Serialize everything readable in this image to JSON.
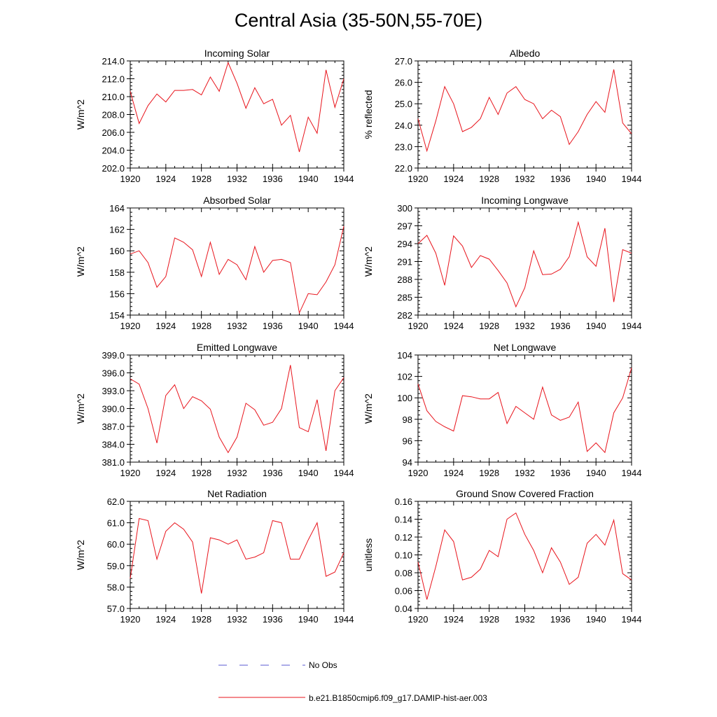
{
  "figure": {
    "title": "Central Asia (35-50N,55-70E)",
    "line_color": "#e8141c",
    "obs_color": "#5a5ad0"
  },
  "legend": {
    "obs_label": "No Obs",
    "model_label": "b.e21.B1850cmip6.f09_g17.DAMIP-hist-aer.003"
  },
  "chart_data": [
    {
      "type": "line",
      "title": "Incoming Solar",
      "ylabel": "W/m^2",
      "x": [
        1920,
        1921,
        1922,
        1923,
        1924,
        1925,
        1926,
        1927,
        1928,
        1929,
        1930,
        1931,
        1932,
        1933,
        1934,
        1935,
        1936,
        1937,
        1938,
        1939,
        1940,
        1941,
        1942,
        1943,
        1944
      ],
      "values": [
        210.6,
        207.0,
        209.0,
        210.3,
        209.4,
        210.7,
        210.7,
        210.8,
        210.2,
        212.2,
        210.6,
        213.8,
        211.5,
        208.7,
        211.0,
        209.2,
        209.7,
        206.8,
        207.9,
        203.8,
        207.7,
        205.9,
        213.0,
        208.8,
        212.0
      ],
      "xlim": [
        1920,
        1944
      ],
      "ylim": [
        202,
        214
      ],
      "yticks": [
        "202.0",
        "204.0",
        "206.0",
        "208.0",
        "210.0",
        "212.0",
        "214.0"
      ],
      "xticks": [
        "1920",
        "1924",
        "1928",
        "1932",
        "1936",
        "1940",
        "1944"
      ]
    },
    {
      "type": "line",
      "title": "Albedo",
      "ylabel": "% reflected",
      "x": [
        1920,
        1921,
        1922,
        1923,
        1924,
        1925,
        1926,
        1927,
        1928,
        1929,
        1930,
        1931,
        1932,
        1933,
        1934,
        1935,
        1936,
        1937,
        1938,
        1939,
        1940,
        1941,
        1942,
        1943,
        1944
      ],
      "values": [
        24.3,
        22.8,
        24.2,
        25.8,
        25.0,
        23.7,
        23.9,
        24.3,
        25.3,
        24.5,
        25.5,
        25.8,
        25.2,
        25.0,
        24.3,
        24.7,
        24.4,
        23.1,
        23.7,
        24.5,
        25.1,
        24.6,
        26.6,
        24.1,
        23.6
      ],
      "xlim": [
        1920,
        1944
      ],
      "ylim": [
        22,
        27
      ],
      "yticks": [
        "22.0",
        "23.0",
        "24.0",
        "25.0",
        "26.0",
        "27.0"
      ],
      "xticks": [
        "1920",
        "1924",
        "1928",
        "1932",
        "1936",
        "1940",
        "1944"
      ]
    },
    {
      "type": "line",
      "title": "Absorbed Solar",
      "ylabel": "W/m^2",
      "x": [
        1920,
        1921,
        1922,
        1923,
        1924,
        1925,
        1926,
        1927,
        1928,
        1929,
        1930,
        1931,
        1932,
        1933,
        1934,
        1935,
        1936,
        1937,
        1938,
        1939,
        1940,
        1941,
        1942,
        1943,
        1944
      ],
      "values": [
        159.7,
        160.0,
        158.9,
        156.6,
        157.6,
        161.2,
        160.8,
        160.1,
        157.6,
        160.8,
        157.8,
        159.2,
        158.7,
        157.3,
        160.4,
        158.0,
        159.1,
        159.2,
        158.9,
        154.2,
        156.0,
        155.9,
        157.1,
        158.7,
        162.3
      ],
      "xlim": [
        1920,
        1944
      ],
      "ylim": [
        154,
        164
      ],
      "yticks": [
        "154",
        "156",
        "158",
        "160",
        "162",
        "164"
      ],
      "xticks": [
        "1920",
        "1924",
        "1928",
        "1932",
        "1936",
        "1940",
        "1944"
      ]
    },
    {
      "type": "line",
      "title": "Incoming Longwave",
      "ylabel": "W/m^2",
      "x": [
        1920,
        1921,
        1922,
        1923,
        1924,
        1925,
        1926,
        1927,
        1928,
        1929,
        1930,
        1931,
        1932,
        1933,
        1934,
        1935,
        1936,
        1937,
        1938,
        1939,
        1940,
        1941,
        1942,
        1943,
        1944
      ],
      "values": [
        294.0,
        295.4,
        292.4,
        287.0,
        295.3,
        293.6,
        290.0,
        292.0,
        291.4,
        289.5,
        287.4,
        283.4,
        286.6,
        292.8,
        288.8,
        288.9,
        289.7,
        291.8,
        297.6,
        291.8,
        290.2,
        296.6,
        284.2,
        293.0,
        292.4
      ],
      "xlim": [
        1920,
        1944
      ],
      "ylim": [
        282,
        300
      ],
      "yticks": [
        "282",
        "285",
        "288",
        "291",
        "294",
        "297",
        "300"
      ],
      "xticks": [
        "1920",
        "1924",
        "1928",
        "1932",
        "1936",
        "1940",
        "1944"
      ]
    },
    {
      "type": "line",
      "title": "Emitted Longwave",
      "ylabel": "W/m^2",
      "x": [
        1920,
        1921,
        1922,
        1923,
        1924,
        1925,
        1926,
        1927,
        1928,
        1929,
        1930,
        1931,
        1932,
        1933,
        1934,
        1935,
        1936,
        1937,
        1938,
        1939,
        1940,
        1941,
        1942,
        1943,
        1944
      ],
      "values": [
        395.0,
        394.1,
        390.0,
        384.2,
        392.2,
        394.0,
        390.0,
        392.0,
        391.3,
        389.9,
        385.2,
        382.6,
        385.2,
        390.9,
        389.8,
        387.2,
        387.7,
        390.0,
        397.3,
        386.8,
        386.1,
        391.5,
        382.9,
        393.0,
        395.2
      ],
      "xlim": [
        1920,
        1944
      ],
      "ylim": [
        381,
        399
      ],
      "yticks": [
        "381.0",
        "384.0",
        "387.0",
        "390.0",
        "393.0",
        "396.0",
        "399.0"
      ],
      "xticks": [
        "1920",
        "1924",
        "1928",
        "1932",
        "1936",
        "1940",
        "1944"
      ]
    },
    {
      "type": "line",
      "title": "Net Longwave",
      "ylabel": "W/m^2",
      "x": [
        1920,
        1921,
        1922,
        1923,
        1924,
        1925,
        1926,
        1927,
        1928,
        1929,
        1930,
        1931,
        1932,
        1933,
        1934,
        1935,
        1936,
        1937,
        1938,
        1939,
        1940,
        1941,
        1942,
        1943,
        1944
      ],
      "values": [
        101.3,
        98.8,
        97.8,
        97.3,
        96.9,
        100.2,
        100.1,
        99.9,
        99.9,
        100.5,
        97.6,
        99.2,
        98.6,
        98.0,
        101.0,
        98.4,
        97.9,
        98.2,
        99.6,
        95.0,
        95.8,
        94.9,
        98.6,
        100.0,
        102.8
      ],
      "xlim": [
        1920,
        1944
      ],
      "ylim": [
        94,
        104
      ],
      "yticks": [
        "94",
        "96",
        "98",
        "100",
        "102",
        "104"
      ],
      "xticks": [
        "1920",
        "1924",
        "1928",
        "1932",
        "1936",
        "1940",
        "1944"
      ]
    },
    {
      "type": "line",
      "title": "Net Radiation",
      "ylabel": "W/m^2",
      "x": [
        1920,
        1921,
        1922,
        1923,
        1924,
        1925,
        1926,
        1927,
        1928,
        1929,
        1930,
        1931,
        1932,
        1933,
        1934,
        1935,
        1936,
        1937,
        1938,
        1939,
        1940,
        1941,
        1942,
        1943,
        1944
      ],
      "values": [
        58.4,
        61.2,
        61.1,
        59.3,
        60.6,
        61.0,
        60.7,
        60.1,
        57.7,
        60.3,
        60.2,
        60.0,
        60.2,
        59.3,
        59.4,
        59.6,
        61.1,
        61.0,
        59.3,
        59.3,
        60.2,
        61.0,
        58.5,
        58.7,
        59.6
      ],
      "xlim": [
        1920,
        1944
      ],
      "ylim": [
        57,
        62
      ],
      "yticks": [
        "57.0",
        "58.0",
        "59.0",
        "60.0",
        "61.0",
        "62.0"
      ],
      "xticks": [
        "1920",
        "1924",
        "1928",
        "1932",
        "1936",
        "1940",
        "1944"
      ]
    },
    {
      "type": "line",
      "title": "Ground Snow Covered Fraction",
      "ylabel": "unitless",
      "x": [
        1920,
        1921,
        1922,
        1923,
        1924,
        1925,
        1926,
        1927,
        1928,
        1929,
        1930,
        1931,
        1932,
        1933,
        1934,
        1935,
        1936,
        1937,
        1938,
        1939,
        1940,
        1941,
        1942,
        1943,
        1944
      ],
      "values": [
        0.092,
        0.05,
        0.087,
        0.128,
        0.115,
        0.072,
        0.075,
        0.084,
        0.105,
        0.098,
        0.14,
        0.147,
        0.123,
        0.105,
        0.08,
        0.108,
        0.092,
        0.067,
        0.075,
        0.113,
        0.123,
        0.111,
        0.139,
        0.079,
        0.072
      ],
      "xlim": [
        1920,
        1944
      ],
      "ylim": [
        0.04,
        0.16
      ],
      "yticks": [
        "0.04",
        "0.06",
        "0.08",
        "0.10",
        "0.12",
        "0.14",
        "0.16"
      ],
      "xticks": [
        "1920",
        "1924",
        "1928",
        "1932",
        "1936",
        "1940",
        "1944"
      ]
    }
  ]
}
